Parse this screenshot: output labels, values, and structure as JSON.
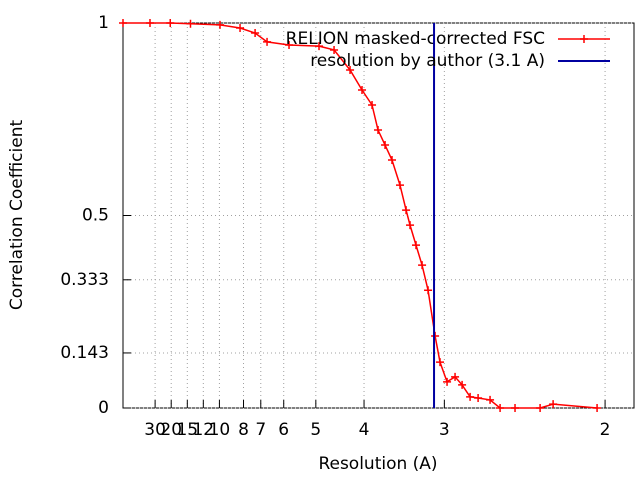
{
  "chart_data": {
    "type": "line",
    "x_label": "Resolution (A)",
    "y_label": "Correlation Coefficient",
    "xlim": [
      0,
      0.53
    ],
    "ylim": [
      0,
      1
    ],
    "xticks": [
      {
        "value": 0.0333,
        "label": "30"
      },
      {
        "value": 0.05,
        "label": "20"
      },
      {
        "value": 0.0667,
        "label": "15"
      },
      {
        "value": 0.0833,
        "label": "12"
      },
      {
        "value": 0.1,
        "label": "10"
      },
      {
        "value": 0.125,
        "label": "8"
      },
      {
        "value": 0.1429,
        "label": "7"
      },
      {
        "value": 0.1667,
        "label": "6"
      },
      {
        "value": 0.2,
        "label": "5"
      },
      {
        "value": 0.25,
        "label": "4"
      },
      {
        "value": 0.3333,
        "label": "3"
      },
      {
        "value": 0.5,
        "label": "2"
      }
    ],
    "yticks": [
      0,
      0.143,
      0.333,
      0.5,
      1
    ],
    "grid": true,
    "legend": "top-right",
    "series": [
      {
        "name": "RELION masked-corrected FSC",
        "color": "#ff0000",
        "x": [
          0,
          0.028,
          0.049,
          0.07,
          0.1006,
          0.1214,
          0.137,
          0.1494,
          0.1722,
          0.2033,
          0.2189,
          0.2355,
          0.2479,
          0.2583,
          0.2645,
          0.2718,
          0.279,
          0.2873,
          0.2936,
          0.2977,
          0.3039,
          0.3102,
          0.3164,
          0.3237,
          0.3288,
          0.3361,
          0.3444,
          0.3517,
          0.36,
          0.3683,
          0.3807,
          0.3911,
          0.4066,
          0.4326,
          0.4461,
          0.4917
        ],
        "values": [
          1,
          1,
          1,
          0.998,
          0.995,
          0.987,
          0.974,
          0.951,
          0.943,
          0.94,
          0.93,
          0.878,
          0.826,
          0.787,
          0.722,
          0.683,
          0.644,
          0.579,
          0.514,
          0.475,
          0.423,
          0.371,
          0.306,
          0.187,
          0.119,
          0.068,
          0.081,
          0.06,
          0.029,
          0.026,
          0.021,
          0,
          0,
          0,
          0.01,
          0
        ]
      }
    ],
    "vline": {
      "name": "resolution by author (3.1 A)",
      "color": "#0000a0",
      "value": 0.3226
    }
  }
}
